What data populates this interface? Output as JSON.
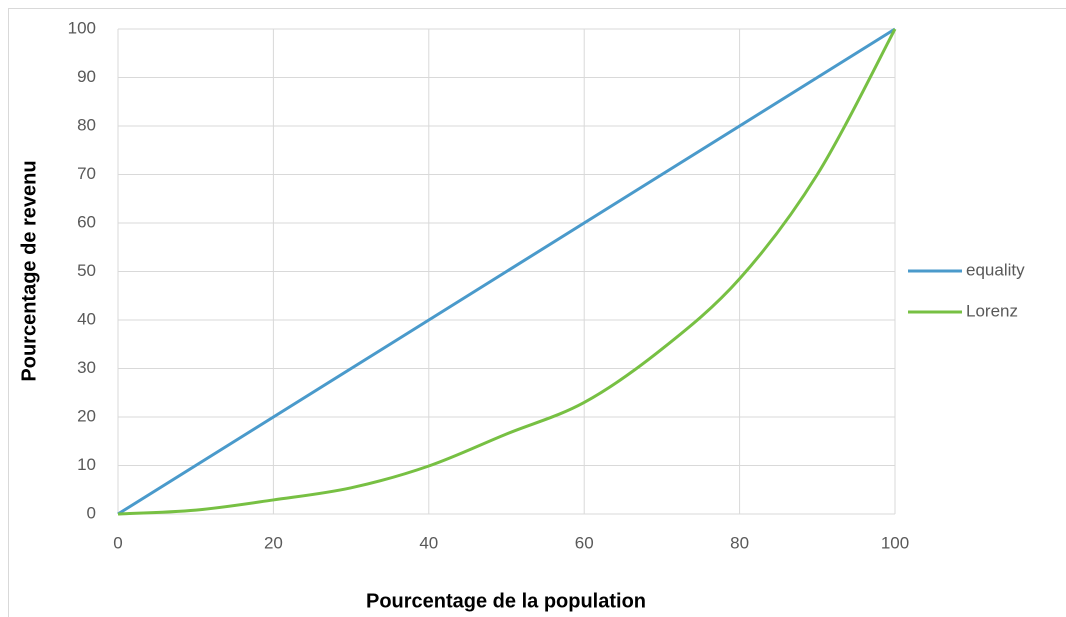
{
  "chart_data": {
    "type": "line",
    "xlabel": "Pourcentage de la population",
    "ylabel": "Pourcentage de revenu",
    "series": [
      {
        "name": "equality",
        "color": "#4a9acb",
        "x": [
          0,
          100
        ],
        "values": [
          0,
          100
        ]
      },
      {
        "name": "Lorenz",
        "color": "#77c043",
        "x": [
          0,
          10,
          20,
          30,
          40,
          50,
          60,
          70,
          80,
          90,
          100
        ],
        "values": [
          0,
          0.8,
          2.9,
          5.4,
          9.9,
          16.5,
          23,
          34,
          48.5,
          70,
          100
        ]
      }
    ],
    "xlim": [
      0,
      100
    ],
    "xticks": [
      0,
      20,
      40,
      60,
      80,
      100
    ],
    "ylim": [
      0,
      100
    ],
    "yticks": [
      0,
      10,
      20,
      30,
      40,
      50,
      60,
      70,
      80,
      90,
      100
    ],
    "grid": true,
    "legend": "right"
  }
}
